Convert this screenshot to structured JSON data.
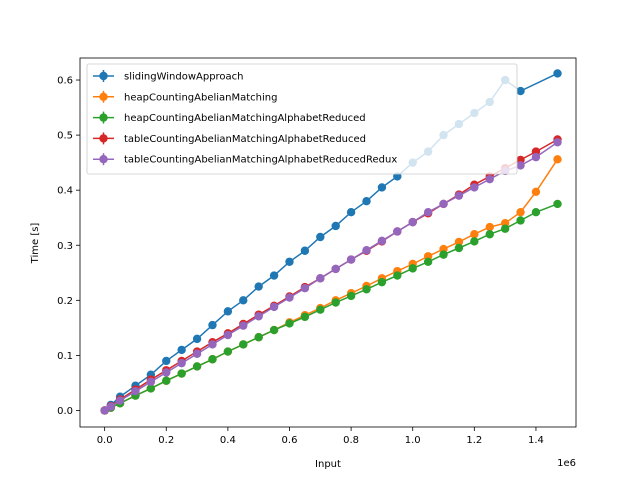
{
  "chart_data": {
    "type": "line",
    "xlabel": "Input",
    "ylabel": "Time [s]",
    "x_offset_label": "1e6",
    "xlim": [
      -0.08,
      1.53
    ],
    "ylim": [
      -0.03,
      0.64
    ],
    "x_ticks": [
      0.0,
      0.2,
      0.4,
      0.6,
      0.8,
      1.0,
      1.2,
      1.4
    ],
    "x_tick_labels": [
      "0.0",
      "0.2",
      "0.4",
      "0.6",
      "0.8",
      "1.0",
      "1.2",
      "1.4"
    ],
    "y_ticks": [
      0.0,
      0.1,
      0.2,
      0.3,
      0.4,
      0.5,
      0.6
    ],
    "y_tick_labels": [
      "0.0",
      "0.1",
      "0.2",
      "0.3",
      "0.4",
      "0.5",
      "0.6"
    ],
    "grid": false,
    "legend_position": "top-left",
    "series": [
      {
        "name": "slidingWindowApproach",
        "color": "#1f77b4",
        "x": [
          0.0,
          0.02,
          0.05,
          0.1,
          0.15,
          0.2,
          0.25,
          0.3,
          0.35,
          0.4,
          0.45,
          0.5,
          0.55,
          0.6,
          0.65,
          0.7,
          0.75,
          0.8,
          0.85,
          0.9,
          0.95,
          1.0,
          1.05,
          1.1,
          1.15,
          1.2,
          1.25,
          1.3,
          1.35,
          1.47
        ],
        "y": [
          0.0,
          0.01,
          0.025,
          0.045,
          0.065,
          0.09,
          0.11,
          0.13,
          0.155,
          0.18,
          0.2,
          0.225,
          0.245,
          0.27,
          0.29,
          0.315,
          0.335,
          0.36,
          0.38,
          0.405,
          0.425,
          0.45,
          0.47,
          0.5,
          0.52,
          0.54,
          0.56,
          0.6,
          0.58,
          0.612
        ]
      },
      {
        "name": "heapCountingAbelianMatching",
        "color": "#ff7f0e",
        "x": [
          0.0,
          0.02,
          0.05,
          0.1,
          0.15,
          0.2,
          0.25,
          0.3,
          0.35,
          0.4,
          0.45,
          0.5,
          0.55,
          0.6,
          0.65,
          0.7,
          0.75,
          0.8,
          0.85,
          0.9,
          0.95,
          1.0,
          1.05,
          1.1,
          1.15,
          1.2,
          1.25,
          1.3,
          1.35,
          1.4,
          1.47
        ],
        "y": [
          0.0,
          0.005,
          0.013,
          0.027,
          0.04,
          0.054,
          0.067,
          0.08,
          0.093,
          0.107,
          0.12,
          0.133,
          0.146,
          0.16,
          0.173,
          0.186,
          0.2,
          0.213,
          0.226,
          0.24,
          0.253,
          0.266,
          0.28,
          0.293,
          0.306,
          0.32,
          0.333,
          0.34,
          0.36,
          0.397,
          0.456
        ]
      },
      {
        "name": "heapCountingAbelianMatchingAlphabetReduced",
        "color": "#2ca02c",
        "x": [
          0.0,
          0.02,
          0.05,
          0.1,
          0.15,
          0.2,
          0.25,
          0.3,
          0.35,
          0.4,
          0.45,
          0.5,
          0.55,
          0.6,
          0.65,
          0.7,
          0.75,
          0.8,
          0.85,
          0.9,
          0.95,
          1.0,
          1.05,
          1.1,
          1.15,
          1.2,
          1.25,
          1.3,
          1.35,
          1.4,
          1.47
        ],
        "y": [
          0.0,
          0.005,
          0.013,
          0.027,
          0.04,
          0.054,
          0.067,
          0.08,
          0.093,
          0.107,
          0.12,
          0.133,
          0.146,
          0.158,
          0.17,
          0.183,
          0.196,
          0.208,
          0.22,
          0.233,
          0.245,
          0.258,
          0.27,
          0.283,
          0.295,
          0.307,
          0.32,
          0.33,
          0.345,
          0.36,
          0.375
        ]
      },
      {
        "name": "tableCountingAbelianMatchingAlphabetReduced",
        "color": "#d62728",
        "x": [
          0.0,
          0.02,
          0.05,
          0.1,
          0.15,
          0.2,
          0.25,
          0.3,
          0.35,
          0.4,
          0.45,
          0.5,
          0.55,
          0.6,
          0.65,
          0.7,
          0.75,
          0.8,
          0.85,
          0.9,
          0.95,
          1.0,
          1.05,
          1.1,
          1.15,
          1.2,
          1.25,
          1.3,
          1.35,
          1.4,
          1.47
        ],
        "y": [
          0.0,
          0.008,
          0.02,
          0.038,
          0.056,
          0.073,
          0.09,
          0.107,
          0.124,
          0.14,
          0.157,
          0.174,
          0.19,
          0.207,
          0.224,
          0.24,
          0.257,
          0.274,
          0.29,
          0.307,
          0.325,
          0.342,
          0.358,
          0.375,
          0.392,
          0.41,
          0.425,
          0.44,
          0.455,
          0.47,
          0.492
        ]
      },
      {
        "name": "tableCountingAbelianMatchingAlphabetReducedRedux",
        "color": "#9467bd",
        "x": [
          0.0,
          0.02,
          0.05,
          0.1,
          0.15,
          0.2,
          0.25,
          0.3,
          0.35,
          0.4,
          0.45,
          0.5,
          0.55,
          0.6,
          0.65,
          0.7,
          0.75,
          0.8,
          0.85,
          0.9,
          0.95,
          1.0,
          1.05,
          1.1,
          1.15,
          1.2,
          1.25,
          1.3,
          1.35,
          1.4,
          1.47
        ],
        "y": [
          0.0,
          0.007,
          0.018,
          0.035,
          0.052,
          0.069,
          0.086,
          0.103,
          0.12,
          0.137,
          0.154,
          0.171,
          0.188,
          0.205,
          0.222,
          0.24,
          0.257,
          0.274,
          0.291,
          0.308,
          0.325,
          0.342,
          0.36,
          0.375,
          0.39,
          0.405,
          0.42,
          0.435,
          0.445,
          0.46,
          0.487
        ]
      }
    ]
  }
}
